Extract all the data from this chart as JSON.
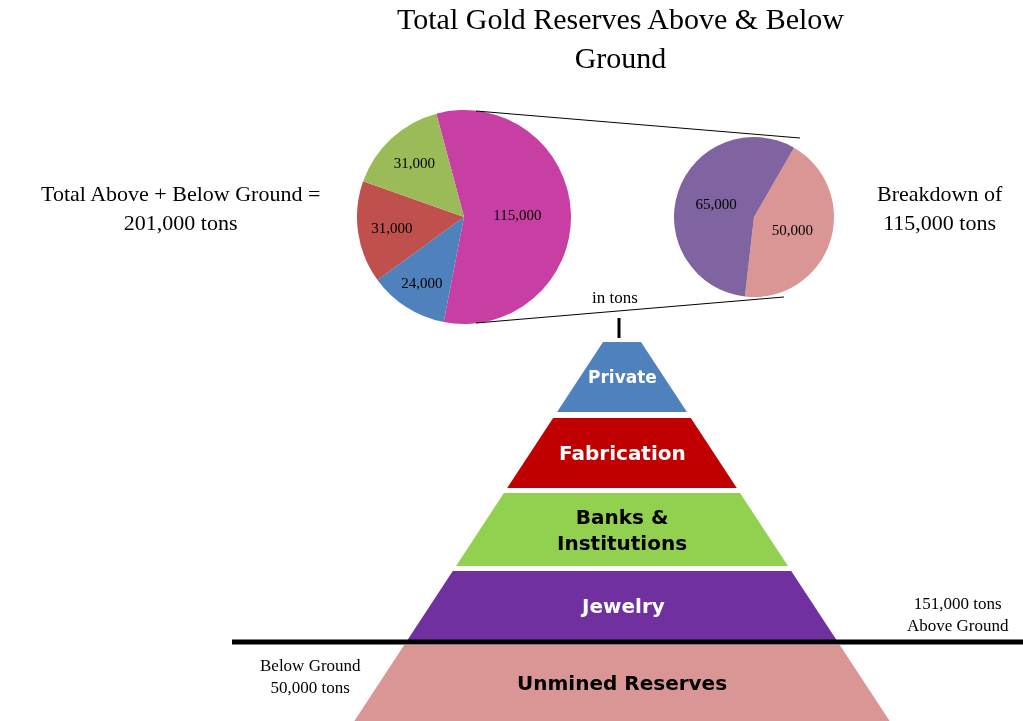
{
  "chart_data": [
    {
      "type": "pie",
      "title": "Total Gold Reserves Above & Below\nGround",
      "categories": [
        null,
        null,
        null,
        null
      ],
      "values": [
        115000,
        24000,
        31000,
        31000
      ],
      "colors": [
        "#c83fa4",
        "#4f81bd",
        "#c0504d",
        "#9bbb59"
      ],
      "value_labels": [
        "115,000",
        "24,000",
        "31,000",
        "31,000"
      ],
      "annotations": [
        "Total Above + Below Ground =\n201,000 tons",
        "in tons"
      ]
    },
    {
      "type": "pie",
      "categories": [
        null,
        null
      ],
      "values": [
        50000,
        65000
      ],
      "colors": [
        "#d99694",
        "#8064a2"
      ],
      "value_labels": [
        "50,000",
        "65,000"
      ],
      "annotations": [
        "Breakdown of\n115,000 tons"
      ]
    },
    {
      "type": "other",
      "categories": [
        "Private",
        "Fabrication",
        "Banks &\nInstitutions",
        "Jewelry",
        "Unmined Reserves"
      ],
      "colors": [
        "#4f81bd",
        "#c00000",
        "#92d050",
        "#7030a0",
        "#d99694"
      ],
      "annotations": [
        "151,000 tons\nAbove Ground",
        "Below Ground\n50,000 tons"
      ]
    }
  ]
}
